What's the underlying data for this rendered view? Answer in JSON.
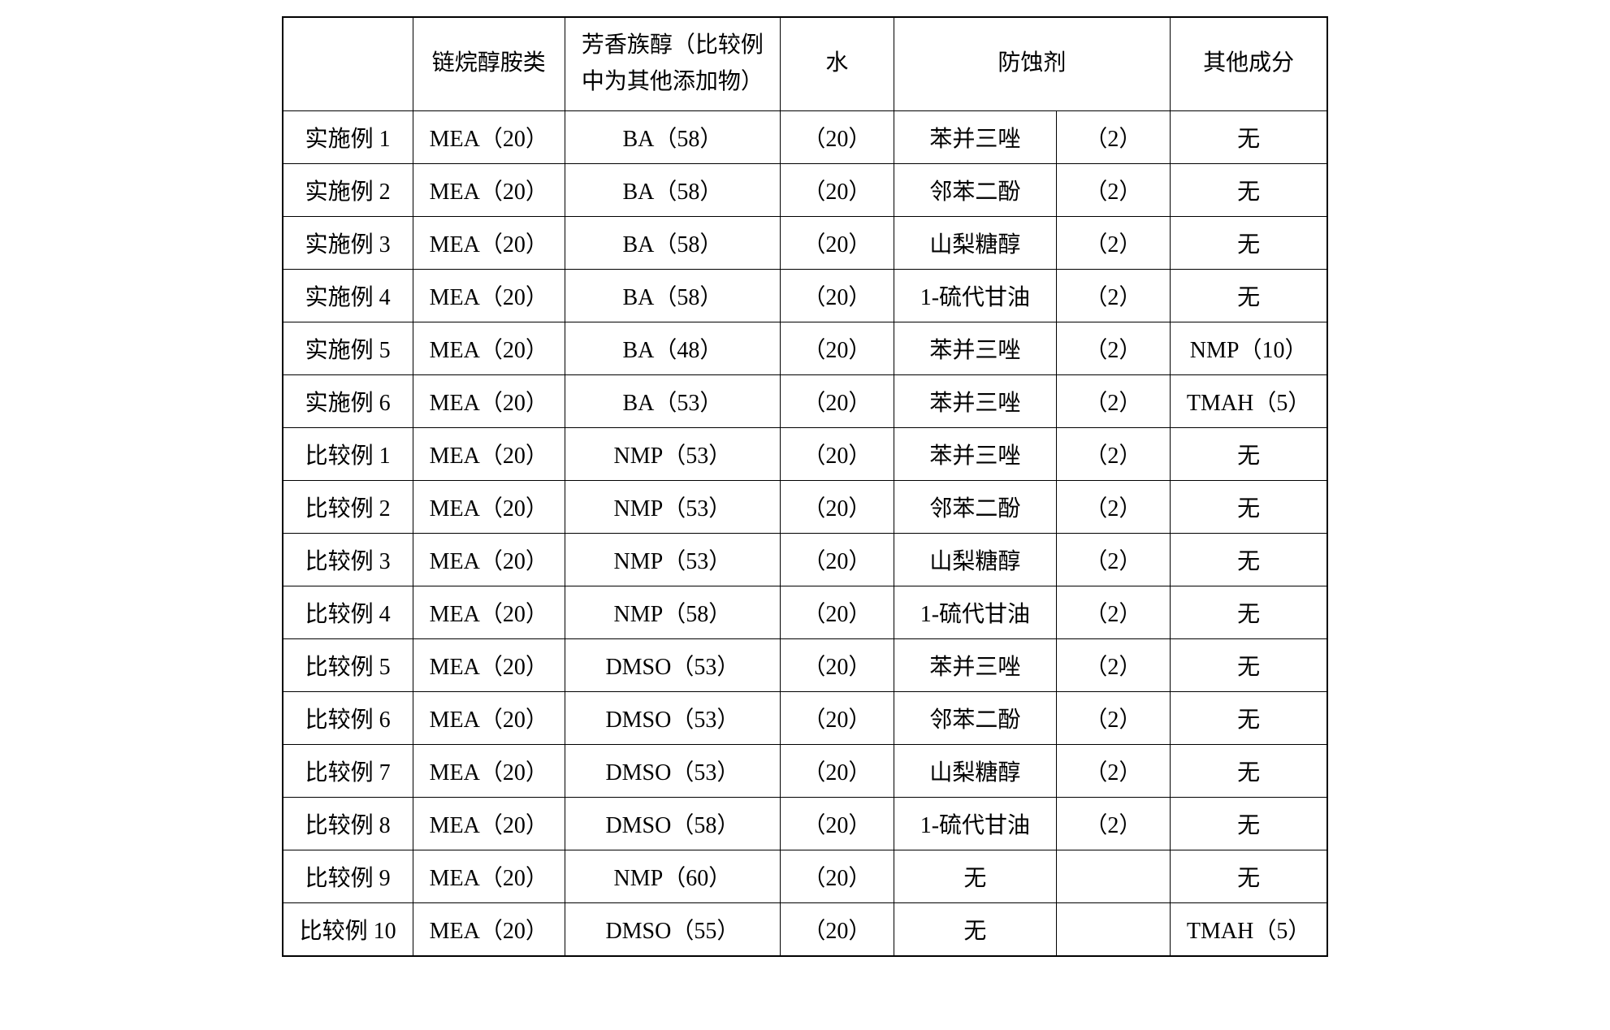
{
  "table": {
    "headers": {
      "blank": "",
      "amine": "链烷醇胺类",
      "aromatic_line1": "芳香族醇（比较例",
      "aromatic_line2": "中为其他添加物）",
      "water": "水",
      "inhibitor": "防蚀剂",
      "other": "其他成分"
    },
    "rows": [
      {
        "label": "实施例 1",
        "amine": "MEA（20）",
        "aroma": "BA（58）",
        "water": "（20）",
        "inhib": "苯并三唑",
        "inhib_val": "（2）",
        "other": "无"
      },
      {
        "label": "实施例 2",
        "amine": "MEA（20）",
        "aroma": "BA（58）",
        "water": "（20）",
        "inhib": "邻苯二酚",
        "inhib_val": "（2）",
        "other": "无"
      },
      {
        "label": "实施例 3",
        "amine": "MEA（20）",
        "aroma": "BA（58）",
        "water": "（20）",
        "inhib": "山梨糖醇",
        "inhib_val": "（2）",
        "other": "无"
      },
      {
        "label": "实施例 4",
        "amine": "MEA（20）",
        "aroma": "BA（58）",
        "water": "（20）",
        "inhib": "1-硫代甘油",
        "inhib_val": "（2）",
        "other": "无"
      },
      {
        "label": "实施例 5",
        "amine": "MEA（20）",
        "aroma": "BA（48）",
        "water": "（20）",
        "inhib": "苯并三唑",
        "inhib_val": "（2）",
        "other": "NMP（10）"
      },
      {
        "label": "实施例 6",
        "amine": "MEA（20）",
        "aroma": "BA（53）",
        "water": "（20）",
        "inhib": "苯并三唑",
        "inhib_val": "（2）",
        "other": "TMAH（5）"
      },
      {
        "label": "比较例 1",
        "amine": "MEA（20）",
        "aroma": "NMP（53）",
        "water": "（20）",
        "inhib": "苯并三唑",
        "inhib_val": "（2）",
        "other": "无"
      },
      {
        "label": "比较例 2",
        "amine": "MEA（20）",
        "aroma": "NMP（53）",
        "water": "（20）",
        "inhib": "邻苯二酚",
        "inhib_val": "（2）",
        "other": "无"
      },
      {
        "label": "比较例 3",
        "amine": "MEA（20）",
        "aroma": "NMP（53）",
        "water": "（20）",
        "inhib": "山梨糖醇",
        "inhib_val": "（2）",
        "other": "无"
      },
      {
        "label": "比较例 4",
        "amine": "MEA（20）",
        "aroma": "NMP（58）",
        "water": "（20）",
        "inhib": "1-硫代甘油",
        "inhib_val": "（2）",
        "other": "无"
      },
      {
        "label": "比较例 5",
        "amine": "MEA（20）",
        "aroma": "DMSO（53）",
        "water": "（20）",
        "inhib": "苯并三唑",
        "inhib_val": "（2）",
        "other": "无"
      },
      {
        "label": "比较例 6",
        "amine": "MEA（20）",
        "aroma": "DMSO（53）",
        "water": "（20）",
        "inhib": "邻苯二酚",
        "inhib_val": "（2）",
        "other": "无"
      },
      {
        "label": "比较例 7",
        "amine": "MEA（20）",
        "aroma": "DMSO（53）",
        "water": "（20）",
        "inhib": "山梨糖醇",
        "inhib_val": "（2）",
        "other": "无"
      },
      {
        "label": "比较例 8",
        "amine": "MEA（20）",
        "aroma": "DMSO（58）",
        "water": "（20）",
        "inhib": "1-硫代甘油",
        "inhib_val": "（2）",
        "other": "无"
      },
      {
        "label": "比较例 9",
        "amine": "MEA（20）",
        "aroma": "NMP（60）",
        "water": "（20）",
        "inhib": "无",
        "inhib_val": "",
        "other": "无"
      },
      {
        "label": "比较例 10",
        "amine": "MEA（20）",
        "aroma": "DMSO（55）",
        "water": "（20）",
        "inhib": "无",
        "inhib_val": "",
        "other": "TMAH（5）"
      }
    ]
  }
}
